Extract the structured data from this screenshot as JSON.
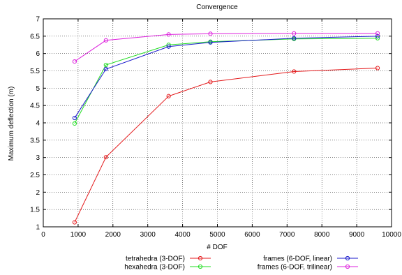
{
  "chart_data": {
    "type": "line",
    "title": "Convergence",
    "xlabel": "# DOF",
    "ylabel": "Maximum deflection (m)",
    "xlim": [
      0,
      10000
    ],
    "ylim": [
      1,
      7
    ],
    "xticks": [
      0,
      1000,
      2000,
      3000,
      4000,
      5000,
      6000,
      7000,
      8000,
      9000,
      10000
    ],
    "yticks": [
      1,
      1.5,
      2,
      2.5,
      3,
      3.5,
      4,
      4.5,
      5,
      5.5,
      6,
      6.5,
      7
    ],
    "grid": true,
    "legend_position": "bottom",
    "series": [
      {
        "name": "tetrahedra (3-DOF)",
        "color": "#e41a1c",
        "x": [
          900,
          1800,
          3600,
          4800,
          7200,
          9600
        ],
        "y": [
          1.13,
          3.01,
          4.77,
          5.18,
          5.48,
          5.58
        ]
      },
      {
        "name": "hexahedra (3-DOF)",
        "color": "#22dd22",
        "x": [
          900,
          1800,
          3600,
          4800,
          7200,
          9600
        ],
        "y": [
          3.98,
          5.67,
          6.25,
          6.34,
          6.42,
          6.44
        ]
      },
      {
        "name": "frames (6-DOF, linear)",
        "color": "#1a1acc",
        "x": [
          900,
          1800,
          3600,
          4800,
          7200,
          9600
        ],
        "y": [
          4.14,
          5.55,
          6.2,
          6.32,
          6.44,
          6.5
        ]
      },
      {
        "name": "frames (6-DOF, trilinear)",
        "color": "#dd22dd",
        "x": [
          900,
          1800,
          3600,
          4800,
          7200,
          9600
        ],
        "y": [
          5.77,
          6.38,
          6.55,
          6.57,
          6.58,
          6.58
        ]
      }
    ]
  }
}
